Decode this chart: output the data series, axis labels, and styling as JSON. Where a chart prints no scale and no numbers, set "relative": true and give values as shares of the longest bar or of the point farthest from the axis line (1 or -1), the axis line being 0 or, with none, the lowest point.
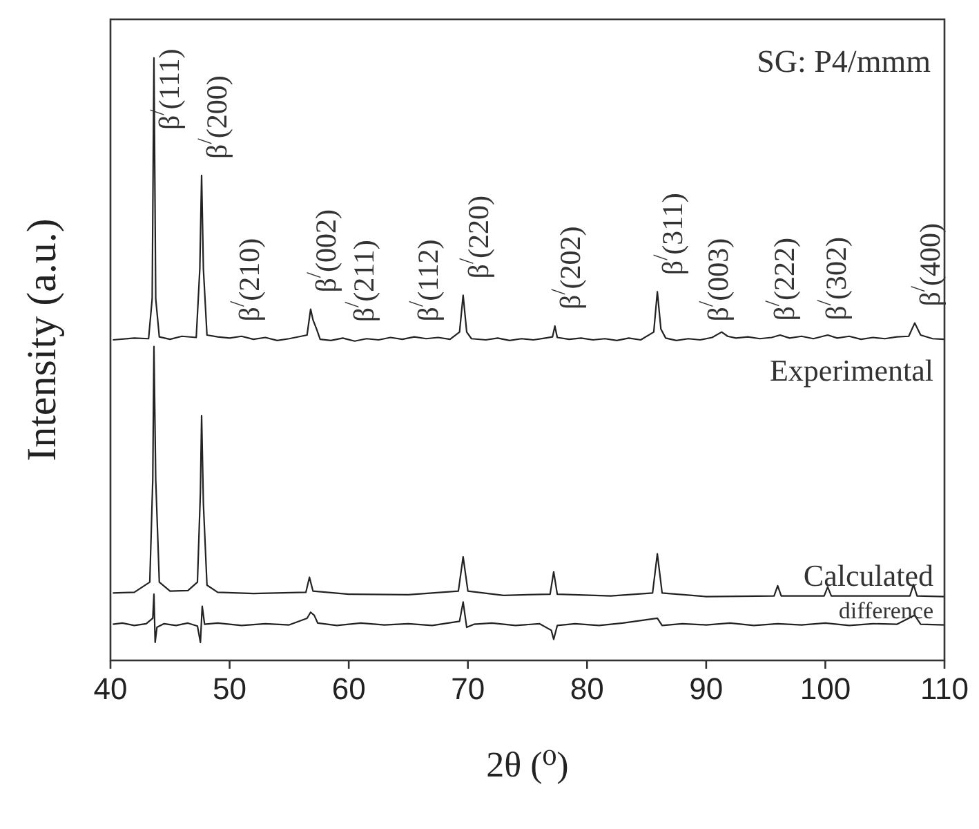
{
  "chart_data": {
    "type": "line",
    "relative": true,
    "xlabel": "2θ   (⁰)",
    "ylabel": "Intensity (a.u.)",
    "xlim": [
      40,
      110
    ],
    "xticks": [
      40,
      50,
      60,
      70,
      80,
      90,
      100,
      110
    ],
    "grid": false,
    "tick_labels": "x",
    "line_style": "solid",
    "series": [
      {
        "name": "Experimental",
        "color": "#222222",
        "x": [
          40.2,
          42,
          43.2,
          43.5,
          43.65,
          43.8,
          44.1,
          45,
          46,
          47.2,
          47.5,
          47.65,
          47.8,
          48.1,
          49,
          50,
          51,
          52,
          53,
          54,
          55,
          56.5,
          56.8,
          57.0,
          57.3,
          57.6,
          58.5,
          59.5,
          60.5,
          61.5,
          62.5,
          63.5,
          64.5,
          65.5,
          66.5,
          67.5,
          68.5,
          69.3,
          69.6,
          69.9,
          70.3,
          71.5,
          72.5,
          73.5,
          74.5,
          75.5,
          76.5,
          77.1,
          77.3,
          77.5,
          78.5,
          79.5,
          80.5,
          81.5,
          82.5,
          83.5,
          84.5,
          85.6,
          85.9,
          86.2,
          86.6,
          87.5,
          88.5,
          89.5,
          90.5,
          91.3,
          91.8,
          92.5,
          93.5,
          94.5,
          95.5,
          96.2,
          97,
          98,
          99,
          100.2,
          101,
          102,
          103,
          104,
          105,
          106,
          107,
          107.5,
          108,
          109,
          110
        ],
        "values": [
          0.532,
          0.535,
          0.534,
          0.6,
          1.0,
          0.6,
          0.537,
          0.533,
          0.538,
          0.536,
          0.65,
          0.805,
          0.65,
          0.54,
          0.537,
          0.535,
          0.538,
          0.533,
          0.536,
          0.531,
          0.534,
          0.54,
          0.583,
          0.565,
          0.55,
          0.533,
          0.531,
          0.535,
          0.53,
          0.534,
          0.532,
          0.536,
          0.533,
          0.537,
          0.534,
          0.536,
          0.533,
          0.545,
          0.606,
          0.545,
          0.534,
          0.532,
          0.535,
          0.531,
          0.534,
          0.532,
          0.535,
          0.537,
          0.555,
          0.536,
          0.533,
          0.535,
          0.532,
          0.534,
          0.531,
          0.535,
          0.532,
          0.545,
          0.612,
          0.55,
          0.535,
          0.531,
          0.534,
          0.532,
          0.536,
          0.545,
          0.538,
          0.535,
          0.537,
          0.534,
          0.536,
          0.54,
          0.535,
          0.538,
          0.534,
          0.54,
          0.535,
          0.538,
          0.533,
          0.536,
          0.534,
          0.537,
          0.538,
          0.56,
          0.54,
          0.534,
          0.533
        ]
      },
      {
        "name": "Calculated",
        "color": "#222222",
        "x": [
          40.2,
          42,
          43.3,
          43.55,
          43.65,
          43.8,
          44.1,
          45,
          46.5,
          47.3,
          47.55,
          47.65,
          47.8,
          48.1,
          49,
          52,
          56.4,
          56.7,
          57,
          60,
          65,
          69.2,
          69.6,
          70,
          73,
          76.9,
          77.2,
          77.5,
          82,
          85.5,
          85.9,
          86.3,
          90,
          95.7,
          96,
          96.3,
          99.9,
          100.2,
          100.5,
          107.1,
          107.4,
          107.7,
          110
        ],
        "values": [
          0.112,
          0.113,
          0.13,
          0.3,
          0.521,
          0.3,
          0.13,
          0.115,
          0.116,
          0.13,
          0.28,
          0.406,
          0.26,
          0.125,
          0.113,
          0.111,
          0.113,
          0.138,
          0.115,
          0.11,
          0.109,
          0.115,
          0.172,
          0.115,
          0.108,
          0.11,
          0.147,
          0.11,
          0.107,
          0.112,
          0.177,
          0.112,
          0.106,
          0.107,
          0.124,
          0.107,
          0.107,
          0.122,
          0.107,
          0.107,
          0.126,
          0.107,
          0.106
        ]
      },
      {
        "name": "difference",
        "color": "#222222",
        "x": [
          40.2,
          41,
          42,
          43,
          43.55,
          43.65,
          43.75,
          43.9,
          44.5,
          45.5,
          46.5,
          47.3,
          47.55,
          47.7,
          47.9,
          49,
          51,
          53,
          55,
          56.5,
          56.8,
          57.1,
          57.4,
          59,
          61,
          63,
          65,
          67,
          69.3,
          69.6,
          69.9,
          70.5,
          72,
          74,
          76,
          77,
          77.2,
          77.5,
          79,
          81,
          83,
          85.9,
          86.3,
          88,
          90,
          92,
          94,
          96,
          98,
          100,
          102,
          104,
          106,
          107.5,
          108,
          110
        ],
        "values": [
          0.06,
          0.062,
          0.058,
          0.061,
          0.07,
          0.11,
          0.03,
          0.055,
          0.061,
          0.058,
          0.062,
          0.057,
          0.03,
          0.09,
          0.06,
          0.062,
          0.058,
          0.061,
          0.059,
          0.07,
          0.08,
          0.075,
          0.062,
          0.058,
          0.062,
          0.059,
          0.061,
          0.058,
          0.065,
          0.097,
          0.055,
          0.06,
          0.062,
          0.058,
          0.061,
          0.05,
          0.035,
          0.058,
          0.061,
          0.058,
          0.062,
          0.07,
          0.058,
          0.061,
          0.059,
          0.062,
          0.058,
          0.061,
          0.059,
          0.062,
          0.058,
          0.061,
          0.06,
          0.075,
          0.06,
          0.059
        ]
      }
    ],
    "annotations": [
      "SG: P4/mmm",
      {
        "text": "β$^{/}$(111)",
        "x": 43.65,
        "y": 1.0
      },
      {
        "text": "β$^{/}$(200)",
        "x": 47.65,
        "y": 0.805
      },
      {
        "text": "β$^{/}$(210)",
        "x": 50.4,
        "y": 0.535
      },
      {
        "text": "β$^{/}$(002)",
        "x": 56.8,
        "y": 0.583
      },
      {
        "text": "β$^{/}$(211)",
        "x": 60.0,
        "y": 0.534
      },
      {
        "text": "β$^{/}$(112)",
        "x": 65.4,
        "y": 0.535
      },
      {
        "text": "β$^{/}$(220)",
        "x": 69.6,
        "y": 0.606
      },
      {
        "text": "β$^{/}$(202)",
        "x": 77.3,
        "y": 0.555
      },
      {
        "text": "β$^{/}$(311)",
        "x": 85.9,
        "y": 0.612
      },
      {
        "text": "β$^{/}$(003)",
        "x": 89.7,
        "y": 0.535
      },
      {
        "text": "β$^{/}$(222)",
        "x": 95.3,
        "y": 0.536
      },
      {
        "text": "β$^{/}$(302)",
        "x": 99.6,
        "y": 0.537
      },
      {
        "text": "β$^{/}$(400)",
        "x": 107.5,
        "y": 0.56
      }
    ]
  }
}
